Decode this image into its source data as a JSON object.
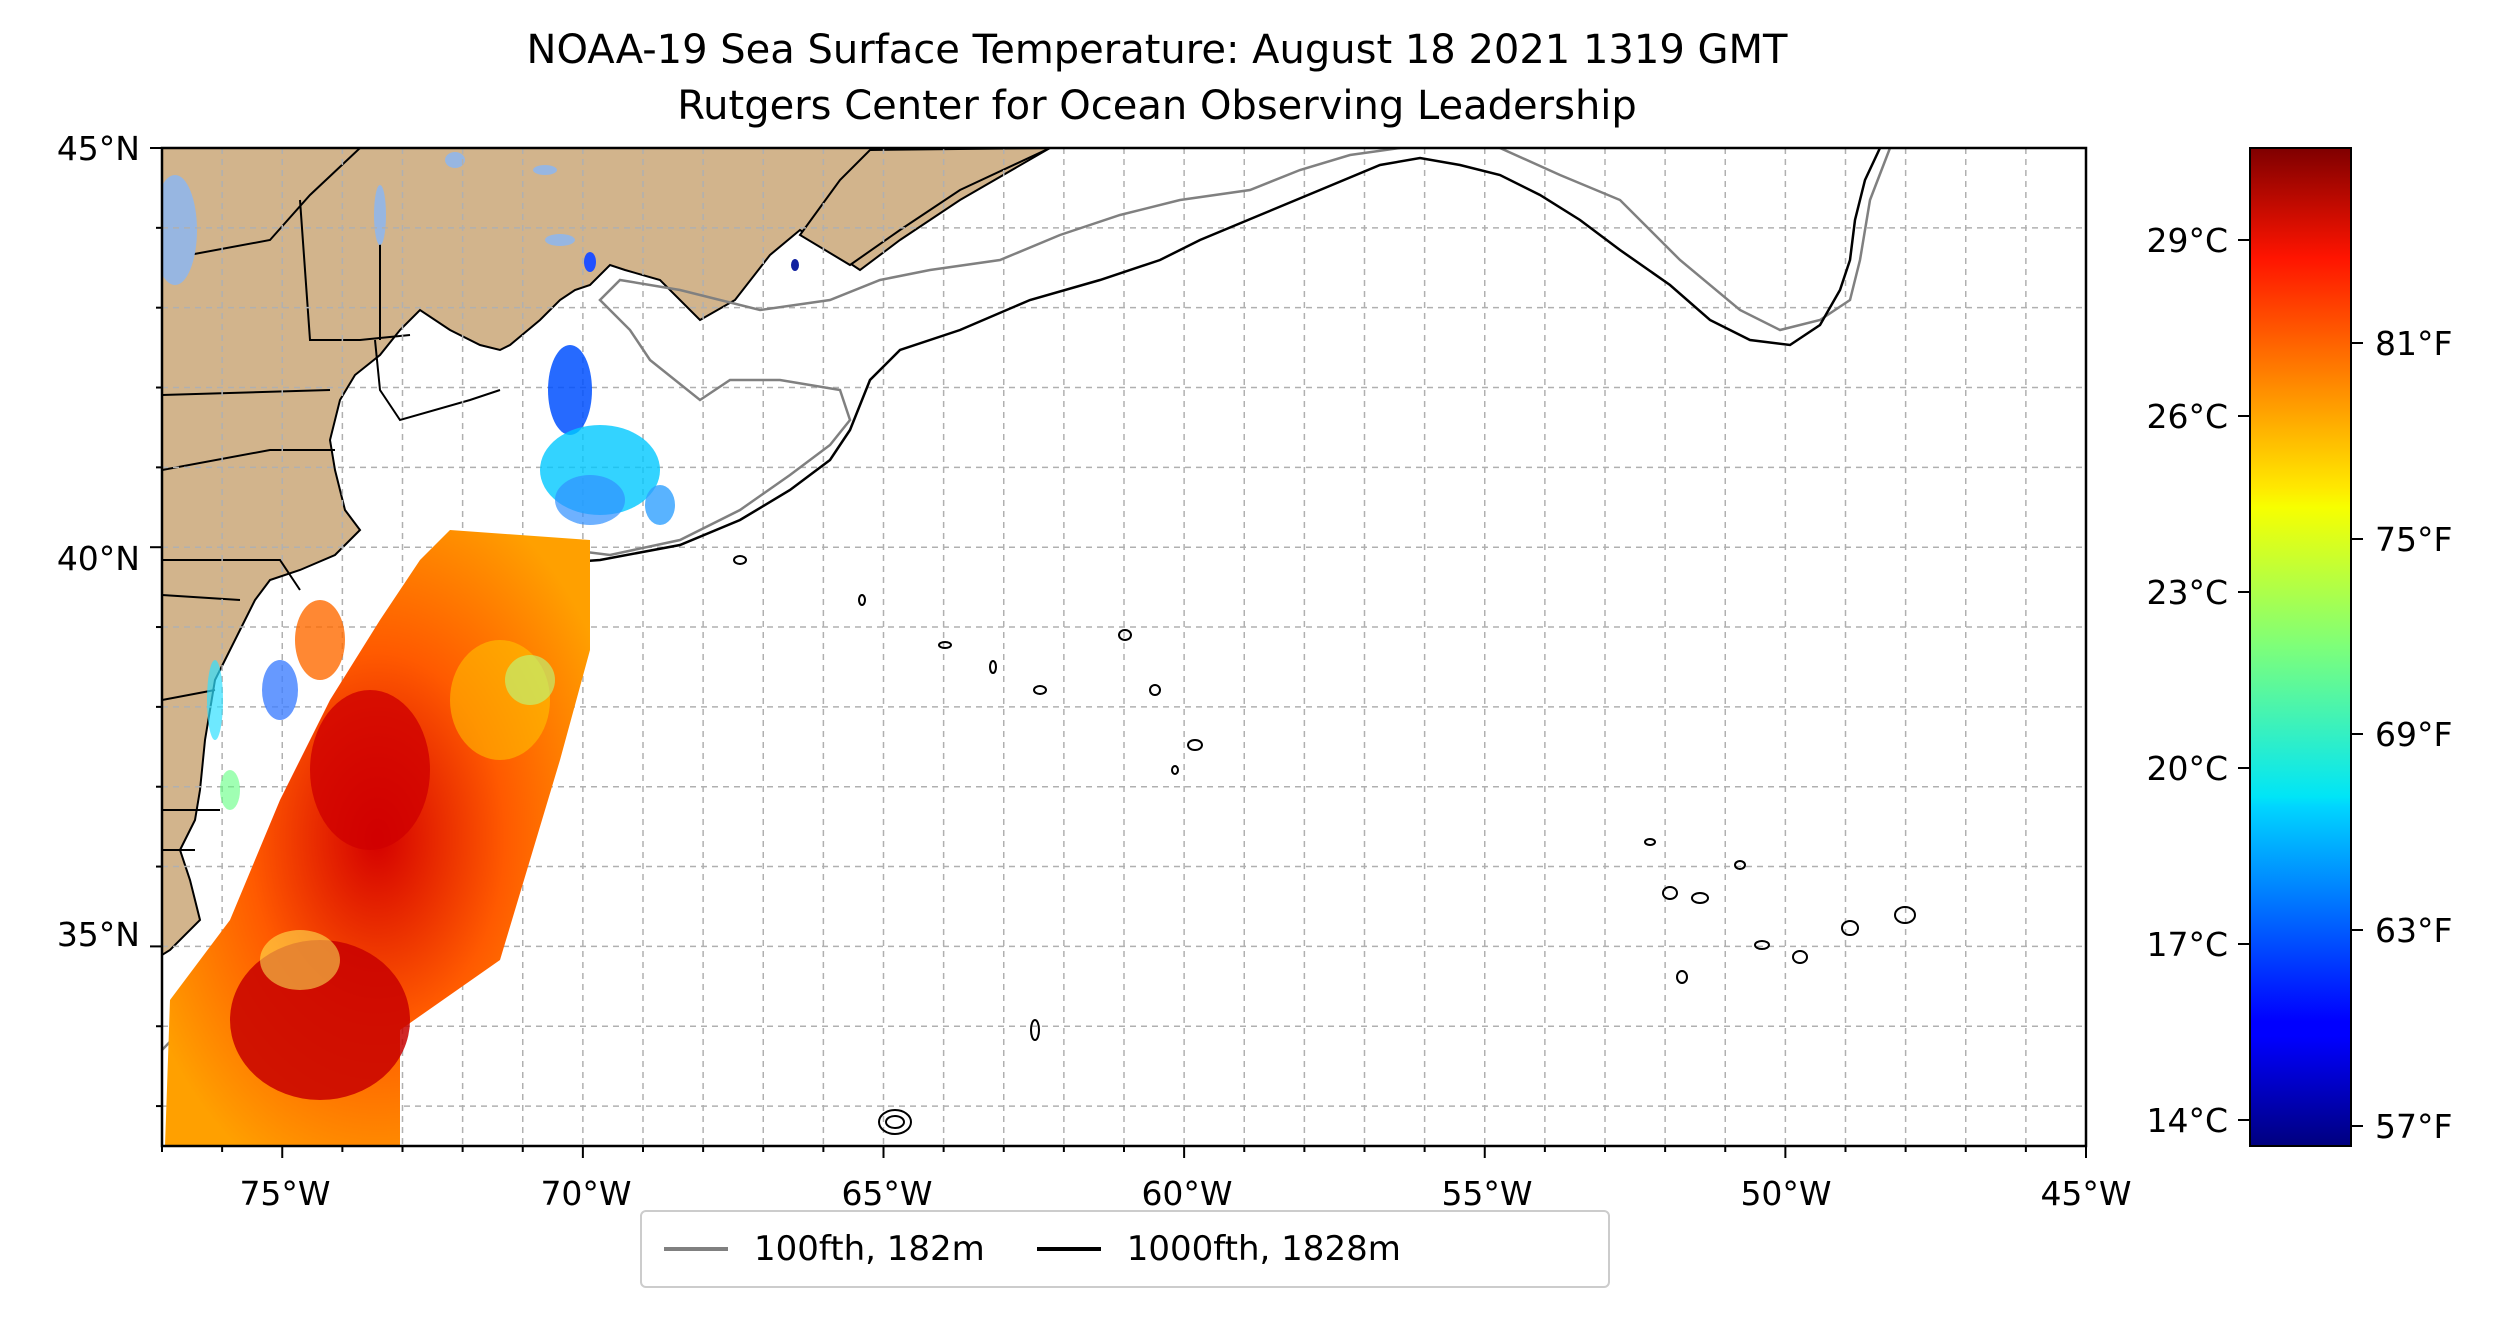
{
  "title": {
    "line1": "NOAA-19 Sea Surface Temperature: August 18 2021 1319 GMT",
    "line2": "Rutgers Center for Ocean Observing Leadership"
  },
  "map": {
    "lon_range": [
      -77,
      -45
    ],
    "lat_range": [
      32.5,
      45
    ],
    "lon_ticks": [
      "75°W",
      "70°W",
      "65°W",
      "60°W",
      "55°W",
      "50°W",
      "45°W"
    ],
    "lat_ticks": [
      "35°N",
      "40°N",
      "45°N"
    ],
    "grid": true,
    "land_color": "#d2b48c",
    "lake_color": "#97b6e1"
  },
  "colorbar": {
    "celsius_ticks": [
      "29°C",
      "26°C",
      "23°C",
      "20°C",
      "17°C",
      "14°C"
    ],
    "fahrenheit_ticks": [
      "81°F",
      "75°F",
      "69°F",
      "63°F",
      "57°F"
    ],
    "colormap": "jet",
    "range_celsius": [
      13.5,
      30.5
    ]
  },
  "legend": {
    "items": [
      {
        "label": "100fth, 182m",
        "color": "#808080"
      },
      {
        "label": "1000fth, 1828m",
        "color": "#000000"
      }
    ]
  }
}
